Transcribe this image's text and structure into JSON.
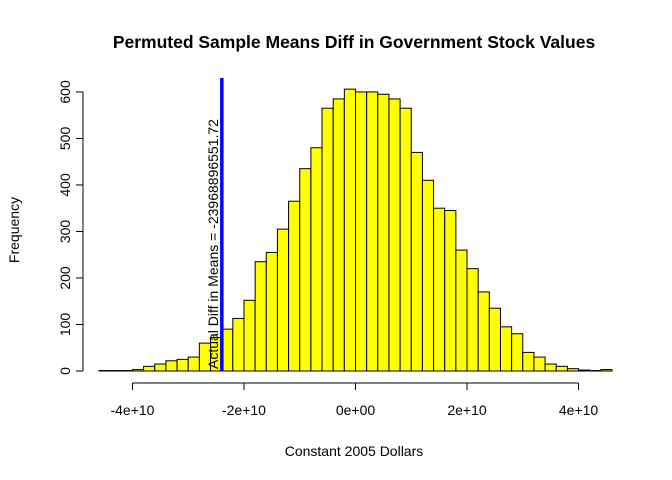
{
  "chart_data": {
    "type": "bar",
    "title": "Permuted Sample Means Diff in Government Stock Values",
    "xlabel": "Constant 2005 Dollars",
    "ylabel": "Frequency",
    "x_tick_labels": [
      "-4e+10",
      "-2e+10",
      "0e+00",
      "2e+10",
      "4e+10"
    ],
    "x_tick_values": [
      -40000000000,
      -20000000000,
      0,
      20000000000,
      40000000000
    ],
    "y_tick_labels": [
      "0",
      "100",
      "200",
      "300",
      "400",
      "500",
      "600"
    ],
    "y_tick_values": [
      0,
      100,
      200,
      300,
      400,
      500,
      600
    ],
    "xlim": [
      -46000000000,
      46000000000
    ],
    "ylim": [
      0,
      630
    ],
    "bin_width": 2000000000,
    "bin_start": -46000000000,
    "counts": [
      1,
      1,
      1,
      3,
      10,
      15,
      22,
      25,
      30,
      60,
      72,
      90,
      113,
      152,
      235,
      255,
      305,
      365,
      435,
      480,
      565,
      585,
      606,
      600,
      600,
      595,
      585,
      565,
      470,
      410,
      350,
      345,
      260,
      220,
      170,
      135,
      95,
      80,
      40,
      30,
      15,
      10,
      5,
      2,
      1,
      3
    ],
    "bar_color": "#ffff00",
    "bar_border_color": "#000000",
    "grid": false,
    "reference_line": {
      "value": -23968896551.72,
      "color": "#0000ff",
      "label": "Actual Diff in Means = -23968896551.72"
    }
  }
}
